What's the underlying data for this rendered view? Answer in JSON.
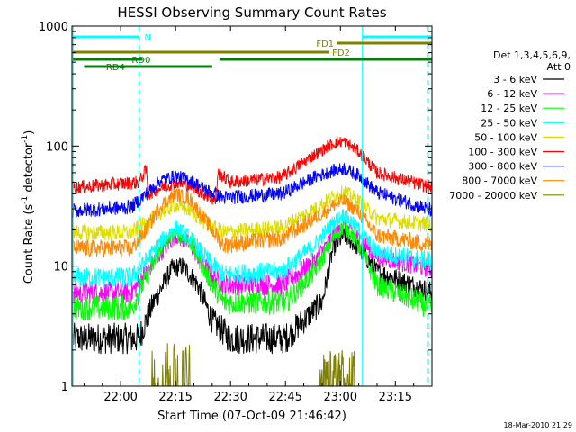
{
  "chart_data": {
    "type": "line",
    "title": "HESSI Observing Summary Count Rates",
    "xlabel": "Start Time (07-Oct-09 21:46:42)",
    "ylabel_base": "Count Rate (s",
    "ylabel_exp1": "-1",
    "ylabel_mid": " detector",
    "ylabel_exp2": "-1",
    "ylabel_end": ")",
    "x_range": [
      "21:46:42",
      "23:25:00"
    ],
    "y_scale": "log",
    "ylim": [
      1,
      1000
    ],
    "x_tick_labels": [
      "22:00",
      "22:15",
      "22:30",
      "22:45",
      "23:00",
      "23:15"
    ],
    "y_tick_labels": [
      "1",
      "10",
      "100",
      "1000"
    ],
    "legend_title_line1": "Det 1,3,4,5,6,9,",
    "legend_title_line2": "Att 0",
    "legend_placement": "right",
    "series": [
      {
        "name": "3 - 6 keV",
        "color": "#000000",
        "profile": [
          [
            "21:47",
            2.5
          ],
          [
            "22:05",
            2.5
          ],
          [
            "22:09",
            5
          ],
          [
            "22:14",
            9.5
          ],
          [
            "22:17",
            10
          ],
          [
            "22:21",
            7
          ],
          [
            "22:25",
            3.5
          ],
          [
            "22:30",
            2.5
          ],
          [
            "22:45",
            2.5
          ],
          [
            "22:55",
            5
          ],
          [
            "22:58",
            14
          ],
          [
            "23:01",
            18
          ],
          [
            "23:05",
            14
          ],
          [
            "23:10",
            9
          ],
          [
            "23:25",
            6
          ]
        ]
      },
      {
        "name": "6 - 12 keV",
        "color": "#ff00ff",
        "profile": [
          [
            "21:47",
            6
          ],
          [
            "22:03",
            6
          ],
          [
            "22:06",
            8
          ],
          [
            "22:11",
            13
          ],
          [
            "22:15",
            18
          ],
          [
            "22:19",
            15
          ],
          [
            "22:24",
            9
          ],
          [
            "22:28",
            7
          ],
          [
            "22:44",
            7
          ],
          [
            "22:53",
            11
          ],
          [
            "22:58",
            18
          ],
          [
            "23:01",
            22
          ],
          [
            "23:05",
            17
          ],
          [
            "23:10",
            12
          ],
          [
            "23:25",
            9.5
          ]
        ]
      },
      {
        "name": "12 - 25 keV",
        "color": "#00ff00",
        "profile": [
          [
            "21:47",
            4.5
          ],
          [
            "22:03",
            4.5
          ],
          [
            "22:06",
            7
          ],
          [
            "22:11",
            14
          ],
          [
            "22:15",
            19
          ],
          [
            "22:19",
            16
          ],
          [
            "22:24",
            8
          ],
          [
            "22:28",
            5
          ],
          [
            "22:45",
            5
          ],
          [
            "22:53",
            9
          ],
          [
            "22:58",
            17
          ],
          [
            "23:01",
            22
          ],
          [
            "23:05",
            15
          ],
          [
            "23:10",
            7
          ],
          [
            "23:25",
            4.5
          ]
        ]
      },
      {
        "name": "25 - 50 keV",
        "color": "#00ffff",
        "profile": [
          [
            "21:47",
            8
          ],
          [
            "22:03",
            8
          ],
          [
            "22:06",
            10
          ],
          [
            "22:11",
            16
          ],
          [
            "22:15",
            21
          ],
          [
            "22:19",
            17
          ],
          [
            "22:24",
            11
          ],
          [
            "22:28",
            8.5
          ],
          [
            "22:44",
            9
          ],
          [
            "22:53",
            15
          ],
          [
            "22:58",
            23
          ],
          [
            "23:01",
            27
          ],
          [
            "23:05",
            20
          ],
          [
            "23:10",
            13
          ],
          [
            "23:25",
            11
          ]
        ]
      },
      {
        "name": "50 - 100 keV",
        "color": "#dddd00",
        "profile": [
          [
            "21:47",
            19
          ],
          [
            "22:03",
            19
          ],
          [
            "22:06",
            22
          ],
          [
            "22:11",
            28
          ],
          [
            "22:15",
            32
          ],
          [
            "22:19",
            29
          ],
          [
            "22:24",
            22
          ],
          [
            "22:28",
            19
          ],
          [
            "22:44",
            21
          ],
          [
            "22:53",
            30
          ],
          [
            "22:58",
            38
          ],
          [
            "23:01",
            42
          ],
          [
            "23:05",
            35
          ],
          [
            "23:10",
            25
          ],
          [
            "23:25",
            22
          ]
        ]
      },
      {
        "name": "100 - 300 keV",
        "color": "#ff0000",
        "profile": [
          [
            "21:47",
            45
          ],
          [
            "22:05",
            50
          ],
          [
            "22:07",
            64
          ],
          [
            "22:07.5",
            40
          ],
          [
            "22:11",
            45
          ],
          [
            "22:15",
            50
          ],
          [
            "22:19",
            47
          ],
          [
            "22:24",
            38
          ],
          [
            "22:26",
            35
          ],
          [
            "22:26.5",
            60
          ],
          [
            "22:30",
            50
          ],
          [
            "22:44",
            55
          ],
          [
            "22:53",
            85
          ],
          [
            "22:58",
            105
          ],
          [
            "23:01",
            110
          ],
          [
            "23:05",
            90
          ],
          [
            "23:10",
            60
          ],
          [
            "23:25",
            45
          ]
        ]
      },
      {
        "name": "300 - 800 keV",
        "color": "#0000ff",
        "profile": [
          [
            "21:47",
            29
          ],
          [
            "22:03",
            31
          ],
          [
            "22:07",
            40
          ],
          [
            "22:11",
            52
          ],
          [
            "22:15",
            56
          ],
          [
            "22:19",
            52
          ],
          [
            "22:24",
            42
          ],
          [
            "22:28",
            37
          ],
          [
            "22:44",
            40
          ],
          [
            "22:53",
            55
          ],
          [
            "22:58",
            62
          ],
          [
            "23:01",
            65
          ],
          [
            "23:05",
            57
          ],
          [
            "23:10",
            41
          ],
          [
            "23:25",
            29
          ]
        ]
      },
      {
        "name": "800 - 7000 keV",
        "color": "#ff8800",
        "profile": [
          [
            "21:47",
            14
          ],
          [
            "22:03",
            14
          ],
          [
            "22:06",
            18
          ],
          [
            "22:11",
            32
          ],
          [
            "22:15",
            40
          ],
          [
            "22:19",
            36
          ],
          [
            "22:24",
            22
          ],
          [
            "22:28",
            15
          ],
          [
            "22:44",
            17
          ],
          [
            "22:53",
            25
          ],
          [
            "22:58",
            32
          ],
          [
            "23:01",
            35
          ],
          [
            "23:05",
            28
          ],
          [
            "23:10",
            18
          ],
          [
            "23:25",
            15
          ]
        ]
      },
      {
        "name": "7000 - 20000 keV",
        "color": "#808000",
        "bursts": [
          {
            "start": "22:08",
            "end": "22:19",
            "peak": 2.5
          },
          {
            "start": "22:54",
            "end": "23:04",
            "peak": 2.0
          }
        ]
      }
    ],
    "annotations": [
      {
        "label": "N",
        "color": "#00ffff",
        "level": "top",
        "segments": [
          [
            "21:47",
            "22:05"
          ],
          [
            "23:06",
            "23:25"
          ]
        ]
      },
      {
        "label": "FD1",
        "color": "#808000",
        "level": "upper",
        "segments": [
          [
            "22:59",
            "23:25"
          ]
        ]
      },
      {
        "label": "FD2",
        "color": "#808000",
        "level": "middle",
        "segments": [
          [
            "21:47",
            "22:57"
          ]
        ]
      },
      {
        "label": "RD0",
        "color": "#008000",
        "level": "lower",
        "segments": [
          [
            "21:47",
            "22:06"
          ],
          [
            "22:27",
            "23:25"
          ]
        ]
      },
      {
        "label": "RD4",
        "color": "#008000",
        "level": "bottom",
        "segments": [
          [
            "21:50",
            "22:25"
          ]
        ]
      }
    ],
    "markers": [
      {
        "color": "#00ffff",
        "style": "solid",
        "time": "21:47"
      },
      {
        "color": "#00ffff",
        "style": "dashed",
        "time": "22:05"
      },
      {
        "color": "#00ffff",
        "style": "solid",
        "time": "23:06"
      },
      {
        "color": "#00ffff",
        "style": "dashed",
        "time": "23:24"
      }
    ]
  },
  "footer": {
    "timestamp": "18-Mar-2010 21:29"
  }
}
